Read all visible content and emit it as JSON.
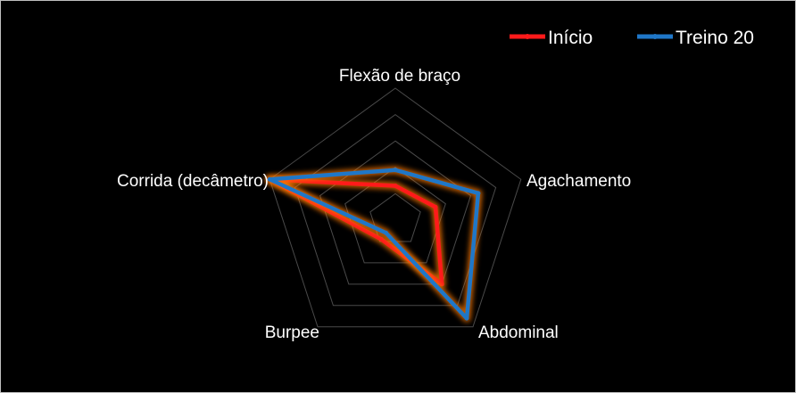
{
  "chart_data": {
    "type": "radar",
    "categories": [
      "Flexão de braço",
      "Agachamento",
      "Abdominal",
      "Burpee",
      "Corrida (decâmetro)"
    ],
    "rmax": 5,
    "gridlines": true,
    "legend_position": "top-right",
    "series": [
      {
        "name": "Início",
        "values": [
          1.3,
          1.6,
          3.0,
          0.9,
          5.0
        ],
        "color": "#ff1a1a"
      },
      {
        "name": "Treino 20",
        "values": [
          1.9,
          3.3,
          4.6,
          0.6,
          5.0
        ],
        "color": "#1f77c8"
      }
    ]
  }
}
